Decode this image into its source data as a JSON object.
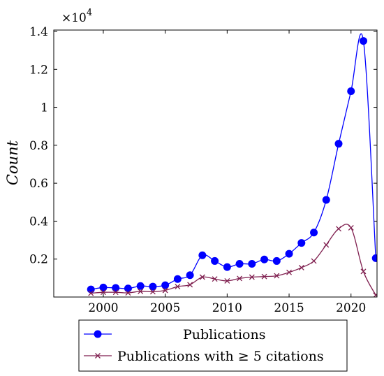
{
  "chart_data": {
    "type": "line",
    "title": "",
    "xlabel": "",
    "ylabel": "Count",
    "y_multiplier_label": "×10",
    "y_multiplier_exponent": "4",
    "xlim": [
      1996,
      2022.1
    ],
    "ylim": [
      0,
      1400
    ],
    "x_ticks": [
      2000,
      2005,
      2010,
      2015,
      2020
    ],
    "x_tick_labels": [
      "2000",
      "2005",
      "2010",
      "2015",
      "2020"
    ],
    "y_ticks": [
      200,
      400,
      600,
      800,
      1000,
      1200,
      1400
    ],
    "y_tick_labels": [
      "0.2",
      "0.4",
      "0.6",
      "0.8",
      "1",
      "1.2",
      "1.4"
    ],
    "grid": false,
    "legend_position": "below",
    "series": [
      {
        "name": "Publications",
        "color": "#0000ff",
        "marker": "circle",
        "x": [
          1999,
          2000,
          2001,
          2002,
          2003,
          2004,
          2005,
          2006,
          2007,
          2008,
          2009,
          2010,
          2011,
          2012,
          2013,
          2014,
          2015,
          2016,
          2017,
          2018,
          2019,
          2020,
          2021,
          2022
        ],
        "values": [
          40,
          50,
          48,
          45,
          58,
          55,
          62,
          95,
          115,
          220,
          190,
          158,
          175,
          175,
          198,
          190,
          228,
          285,
          340,
          512,
          808,
          1085,
          1350,
          205
        ]
      },
      {
        "name": "Publications with ≥ 5 citations",
        "color": "#7f1f4f",
        "marker": "x",
        "x": [
          1999,
          2000,
          2001,
          2002,
          2003,
          2004,
          2005,
          2006,
          2007,
          2008,
          2009,
          2010,
          2011,
          2012,
          2013,
          2014,
          2015,
          2016,
          2017,
          2018,
          2019,
          2020,
          2021,
          2022
        ],
        "values": [
          20,
          25,
          25,
          22,
          30,
          28,
          35,
          55,
          65,
          105,
          95,
          85,
          98,
          105,
          108,
          112,
          130,
          155,
          190,
          275,
          360,
          365,
          135,
          10
        ]
      }
    ]
  }
}
